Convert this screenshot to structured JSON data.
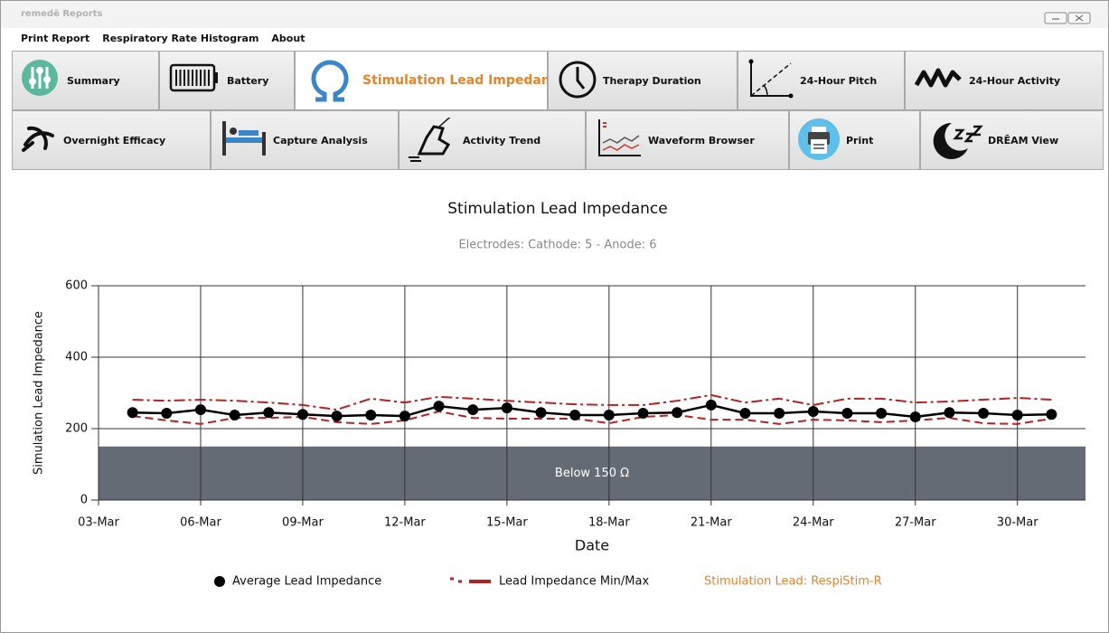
{
  "app": {
    "title": "remedē Reports",
    "menu": [
      "Print Report",
      "Respiratory Rate Histogram",
      "About"
    ],
    "tabs": [
      [
        {
          "label": "Summary"
        },
        {
          "label": "Battery"
        },
        {
          "label": "Stimulation Lead Impedance",
          "active": true
        },
        {
          "label": "Therapy Duration"
        },
        {
          "label": "24-Hour Pitch"
        },
        {
          "label": "24-Hour Activity"
        }
      ],
      [
        {
          "label": "Overnight Efficacy"
        },
        {
          "label": "Capture Analysis"
        },
        {
          "label": "Activity Trend"
        },
        {
          "label": "Waveform Browser"
        },
        {
          "label": "Print"
        },
        {
          "label": "DRĒAM View"
        }
      ]
    ]
  },
  "chart_data": {
    "type": "line",
    "title": "Stimulation Lead Impedance",
    "subtitle": "Electrodes: Cathode: 5 - Anode: 6",
    "xlabel": "Date",
    "ylabel": "Simulation Lead Impedance",
    "x": [
      "04-Mar",
      "05-Mar",
      "06-Mar",
      "07-Mar",
      "08-Mar",
      "09-Mar",
      "10-Mar",
      "11-Mar",
      "12-Mar",
      "13-Mar",
      "14-Mar",
      "15-Mar",
      "16-Mar",
      "17-Mar",
      "18-Mar",
      "19-Mar",
      "20-Mar",
      "21-Mar",
      "22-Mar",
      "23-Mar",
      "24-Mar",
      "25-Mar",
      "26-Mar",
      "27-Mar",
      "28-Mar",
      "29-Mar",
      "30-Mar",
      "31-Mar"
    ],
    "xlim": [
      "03-Mar",
      "01-Apr"
    ],
    "xticks": [
      "03-Mar",
      "06-Mar",
      "09-Mar",
      "12-Mar",
      "15-Mar",
      "18-Mar",
      "21-Mar",
      "24-Mar",
      "27-Mar",
      "30-Mar"
    ],
    "ylim": [
      0,
      600
    ],
    "yticks": [
      0,
      200,
      400,
      600
    ],
    "grid": true,
    "series": [
      {
        "name": "Average Lead Impedance",
        "color": "#000000",
        "values": [
          245,
          243,
          253,
          238,
          245,
          240,
          235,
          238,
          235,
          263,
          253,
          258,
          245,
          238,
          238,
          243,
          245,
          266,
          243,
          243,
          248,
          243,
          243,
          233,
          245,
          243,
          238,
          240
        ]
      }
    ],
    "range": {
      "name": "Lead Impedance Min/Max",
      "color": "#b22222",
      "max": [
        281,
        278,
        281,
        278,
        273,
        266,
        253,
        284,
        273,
        289,
        284,
        278,
        273,
        268,
        266,
        266,
        278,
        294,
        273,
        284,
        266,
        284,
        284,
        273,
        276,
        281,
        286,
        281
      ],
      "min": [
        235,
        223,
        213,
        230,
        230,
        233,
        218,
        213,
        223,
        248,
        230,
        228,
        228,
        228,
        215,
        233,
        238,
        225,
        225,
        213,
        225,
        223,
        218,
        223,
        230,
        215,
        213,
        228
      ]
    },
    "band": {
      "label": "Below 150 Ω",
      "ymin": 0,
      "ymax": 150,
      "color": "#656b75"
    },
    "annotation": {
      "text": "Stimulation Lead: RespiStim-R",
      "color": "#e8832a"
    }
  }
}
